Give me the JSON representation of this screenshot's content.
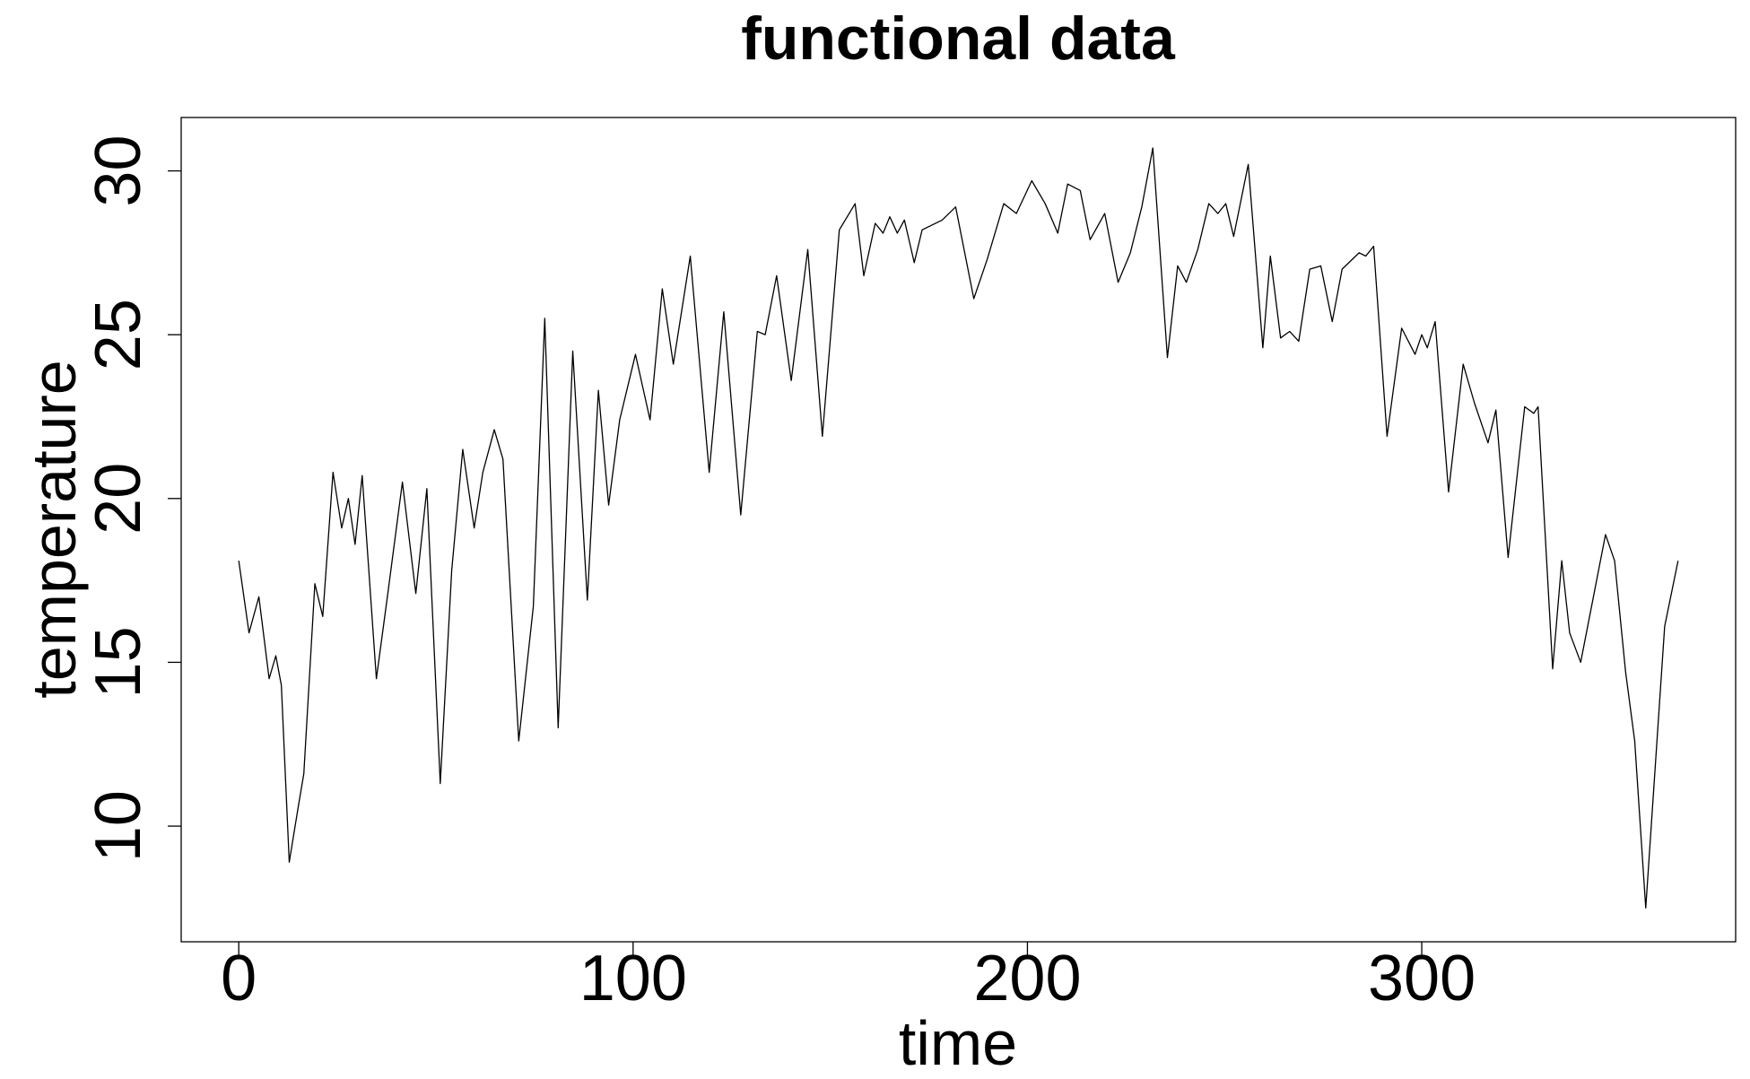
{
  "chart_data": {
    "type": "line",
    "title": "functional data",
    "x_label": "time",
    "y_label": "temperature",
    "x": [
      0,
      2.6,
      5.1,
      7.7,
      9.4,
      10.8,
      12.8,
      15.1,
      16.5,
      19.3,
      21.3,
      23.9,
      26.1,
      27.8,
      29.5,
      31.3,
      34.9,
      37.8,
      41.5,
      44.9,
      47.7,
      51.1,
      54,
      56.8,
      59.7,
      61.9,
      64.8,
      67,
      71,
      74.7,
      77.6,
      81,
      84.7,
      88.4,
      91.2,
      93.8,
      96.6,
      100.6,
      104.3,
      107.4,
      110.2,
      114.5,
      119.3,
      123,
      127.3,
      131.5,
      133.5,
      136.4,
      140.1,
      144.3,
      148,
      152.3,
      156.3,
      158.5,
      161.4,
      163.4,
      165.1,
      167,
      168.8,
      171.3,
      173.3,
      178.4,
      181.8,
      186.4,
      189.8,
      194,
      197.2,
      201.1,
      204.5,
      207.7,
      210.2,
      213.4,
      215.9,
      219.6,
      223,
      226.1,
      229,
      231.8,
      235.5,
      238.1,
      240.3,
      243.2,
      246,
      248.3,
      250.3,
      252.3,
      256,
      259.7,
      261.6,
      264.2,
      266.5,
      268.8,
      271.6,
      274.4,
      277.3,
      279.8,
      284.1,
      285.8,
      287.8,
      291.2,
      294.9,
      298.3,
      300,
      301.4,
      303.4,
      306.8,
      310.5,
      313.4,
      316.8,
      318.8,
      321.9,
      326.1,
      328.4,
      329.5,
      333.2,
      335.5,
      337.5,
      340.3,
      346.6,
      348.9,
      351.7,
      354,
      356.8,
      361.6,
      365
    ],
    "series": [
      {
        "color": "#000000",
        "values": [
          18.1,
          15.9,
          17,
          14.5,
          15.2,
          14.3,
          8.9,
          10.6,
          11.6,
          17.4,
          16.4,
          20.8,
          19.1,
          20,
          18.6,
          20.7,
          14.5,
          17.1,
          20.5,
          17.1,
          20.3,
          11.3,
          17.8,
          21.5,
          19.1,
          20.8,
          22.1,
          21.2,
          12.6,
          16.7,
          25.5,
          13,
          24.5,
          16.9,
          23.3,
          19.8,
          22.4,
          24.4,
          22.4,
          26.4,
          24.1,
          27.4,
          20.8,
          25.7,
          19.5,
          25.1,
          25,
          26.8,
          23.6,
          27.6,
          21.9,
          28.2,
          29,
          26.8,
          28.4,
          28.1,
          28.6,
          28.1,
          28.5,
          27.2,
          28.2,
          28.5,
          28.9,
          26.1,
          27.3,
          29,
          28.7,
          29.7,
          29,
          28.1,
          29.6,
          29.4,
          27.9,
          28.7,
          26.6,
          27.5,
          28.9,
          30.7,
          24.3,
          27.1,
          26.6,
          27.6,
          29,
          28.7,
          29,
          28,
          30.2,
          24.6,
          27.4,
          24.9,
          25.1,
          24.8,
          27,
          27.1,
          25.4,
          27,
          27.5,
          27.4,
          27.7,
          21.9,
          25.2,
          24.4,
          25,
          24.6,
          25.4,
          20.2,
          24.1,
          22.9,
          21.7,
          22.7,
          18.2,
          22.8,
          22.6,
          22.8,
          14.8,
          18.1,
          15.9,
          15,
          18.9,
          18.1,
          14.7,
          12.6,
          7.5,
          16.1,
          18.1
        ]
      }
    ],
    "xlim": [
      -14.6,
      379.6
    ],
    "ylim": [
      6.47,
      31.63
    ],
    "xticks": [
      0,
      100,
      200,
      300
    ],
    "yticks": [
      10,
      15,
      20,
      25,
      30
    ]
  }
}
